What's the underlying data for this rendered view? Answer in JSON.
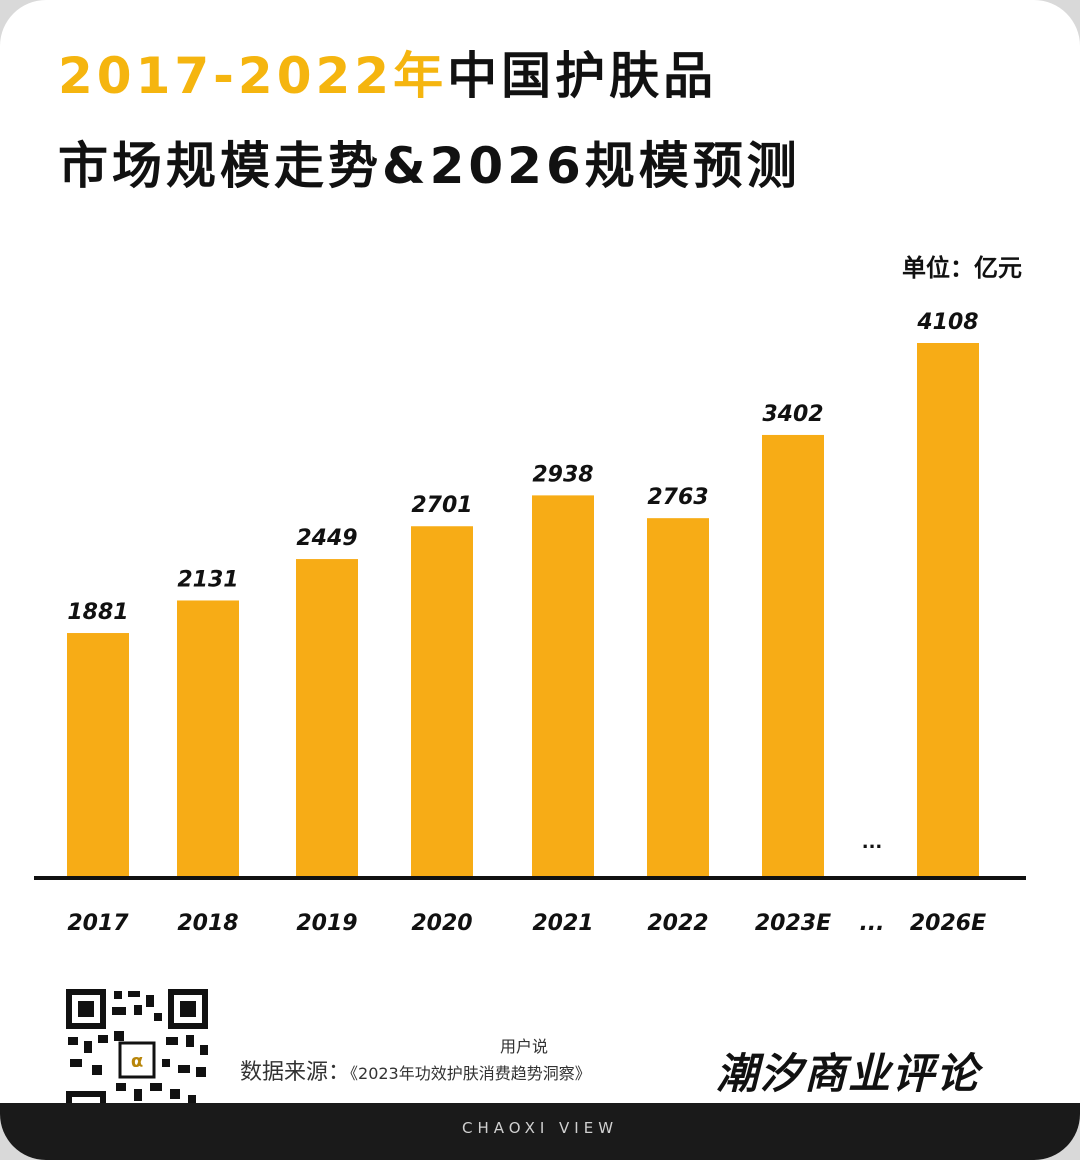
{
  "header": {
    "title_line1_accent": "2017-2022年",
    "title_line1_rest": "中国护肤品",
    "title_line2": "市场规模走势&2026规模预测"
  },
  "unit_label": "单位：亿元",
  "chart_data": {
    "type": "bar",
    "categories": [
      "2017",
      "2018",
      "2019",
      "2020",
      "2021",
      "2022",
      "2023E",
      "...",
      "2026E"
    ],
    "values": [
      1881,
      2131,
      2449,
      2701,
      2938,
      2763,
      3402,
      null,
      4108
    ],
    "data_labels": [
      "1881",
      "2131",
      "2449",
      "2701",
      "2938",
      "2763",
      "3402",
      "...",
      "4108"
    ],
    "unit": "亿元",
    "ylim": [
      0,
      4300
    ],
    "grid": false,
    "legend": "none",
    "bar_color": "#f7ac16",
    "axis_color": "#111111"
  },
  "footer": {
    "source_prefix": "用户说",
    "source_label": "数据来源：",
    "source_title": "《2023年功效护肤消费趋势洞察》",
    "brand": "潮汐商业评论",
    "bar_text": "CHAOXI VIEW"
  },
  "colors": {
    "accent": "#f5b50f",
    "bar": "#f7ac16",
    "text": "#111111",
    "footer_bg": "#1a1a1a"
  },
  "icons": {
    "qr": "qr-code-icon"
  }
}
